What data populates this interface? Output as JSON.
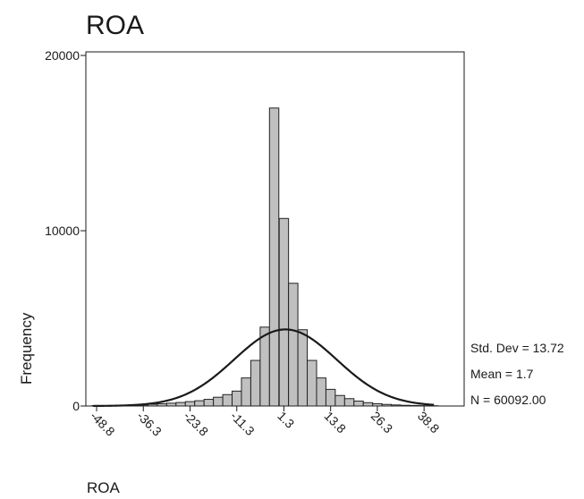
{
  "chart_data": {
    "type": "bar",
    "title": "ROA",
    "xlabel": "ROA",
    "ylabel": "Frequency",
    "ylim": [
      0,
      20000
    ],
    "y_ticks": [
      0,
      10000,
      20000
    ],
    "x_ticks": [
      "-48.8",
      "-36.3",
      "-23.8",
      "-11.3",
      "1.3",
      "13.8",
      "26.3",
      "38.8"
    ],
    "bin_width": 2.5,
    "bin_centers": [
      -48.8,
      -46.3,
      -43.8,
      -41.3,
      -38.8,
      -36.3,
      -33.8,
      -31.3,
      -28.8,
      -26.3,
      -23.8,
      -21.3,
      -18.8,
      -16.3,
      -13.8,
      -11.3,
      -8.8,
      -6.3,
      -3.8,
      -1.3,
      1.3,
      3.8,
      6.3,
      8.8,
      11.3,
      13.8,
      16.3,
      18.8,
      21.3,
      23.8,
      26.3,
      28.8,
      31.3,
      33.8,
      36.3,
      38.8,
      41.3
    ],
    "values": [
      20,
      20,
      25,
      30,
      40,
      60,
      100,
      130,
      160,
      200,
      250,
      300,
      380,
      500,
      650,
      850,
      1600,
      2600,
      4500,
      17000,
      10700,
      7000,
      4350,
      2600,
      1600,
      950,
      600,
      420,
      280,
      190,
      130,
      90,
      60,
      40,
      30,
      20,
      15
    ],
    "normal_curve": {
      "mean": 1.7,
      "std_dev": 13.72,
      "n": 60092
    },
    "stats": [
      "Std. Dev = 13.72",
      "Mean = 1.7",
      "N = 60092.00"
    ],
    "grid": false,
    "colors": {
      "bar_fill": "#c0c0c0",
      "bar_stroke": "#222222",
      "curve": "#1a1a1a"
    }
  }
}
